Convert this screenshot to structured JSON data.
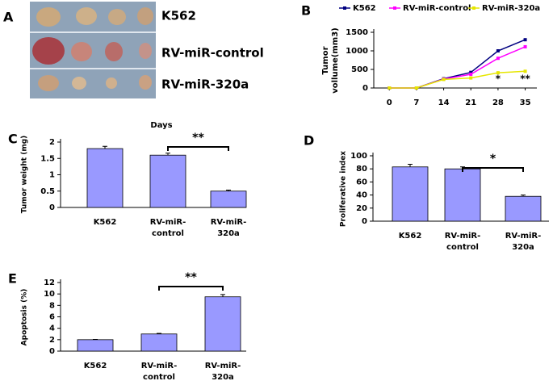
{
  "photo": {
    "panel": "A",
    "labels": [
      "K562",
      "RV-miR-control",
      "RV-miR-320a"
    ]
  },
  "chart_data": [
    {
      "type": "line",
      "panel": "B",
      "y_label": [
        "Tumor",
        "vollume(mm3)"
      ],
      "x_label": "Days",
      "x": [
        0,
        7,
        14,
        21,
        28,
        35
      ],
      "xlim": [
        -4,
        38
      ],
      "xticks": [
        0,
        7,
        14,
        21,
        28,
        35
      ],
      "ylim": [
        0,
        1500
      ],
      "yticks": [
        0,
        500,
        1000,
        1500
      ],
      "series": [
        {
          "name": "K562",
          "color": "#000080",
          "values": [
            0,
            0,
            250,
            420,
            1000,
            1300
          ]
        },
        {
          "name": "RV-miR-control",
          "color": "#ff00ff",
          "values": [
            0,
            0,
            240,
            370,
            800,
            1110
          ]
        },
        {
          "name": "RV-miR-320a",
          "color": "#e6e600",
          "values": [
            0,
            0,
            230,
            270,
            410,
            450
          ]
        }
      ],
      "annotations": [
        "*",
        "**"
      ]
    },
    {
      "type": "bar",
      "panel": "C",
      "y_label": "Tumor weight (mg)",
      "categories": [
        [
          "K562"
        ],
        [
          "RV-miR-",
          "control"
        ],
        [
          "RV-miR-",
          "320a"
        ]
      ],
      "values": [
        1.8,
        1.6,
        0.5
      ],
      "errors": [
        0.07,
        0.06,
        0.03
      ],
      "ylim": [
        0,
        2
      ],
      "yticks": [
        0,
        0.5,
        1,
        1.5,
        2
      ],
      "color": "#9999ff",
      "annotation": "**"
    },
    {
      "type": "bar",
      "panel": "D",
      "y_label": "Proliferative index",
      "categories": [
        [
          "K562"
        ],
        [
          "RV-miR-",
          "control"
        ],
        [
          "RV-miR-",
          "320a"
        ]
      ],
      "values": [
        83,
        80,
        38
      ],
      "errors": [
        4,
        3,
        2
      ],
      "ylim": [
        0,
        100
      ],
      "yticks": [
        0,
        20,
        40,
        60,
        80,
        100
      ],
      "color": "#9999ff",
      "annotation": "*"
    },
    {
      "type": "bar",
      "panel": "E",
      "y_label": "Apoptosis (%)",
      "categories": [
        [
          "K562"
        ],
        [
          "RV-miR-",
          "control"
        ],
        [
          "RV-miR-",
          "320a"
        ]
      ],
      "values": [
        2,
        3,
        9.5
      ],
      "errors": [
        0.05,
        0.1,
        0.4
      ],
      "ylim": [
        0,
        12
      ],
      "yticks": [
        0,
        2,
        4,
        6,
        8,
        10,
        12
      ],
      "color": "#9999ff",
      "annotation": "**"
    }
  ]
}
